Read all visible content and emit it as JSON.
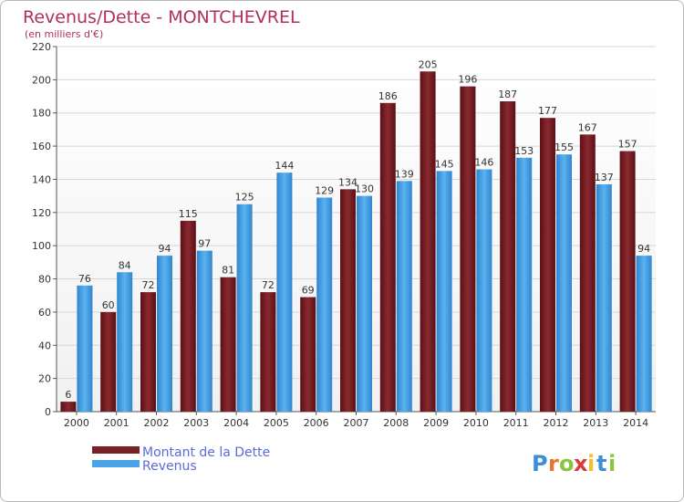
{
  "chart_data": {
    "type": "bar",
    "title": "Revenus/Dette - MONTCHEVREL",
    "subtitle": "(en milliers d'€)",
    "categories": [
      "2000",
      "2001",
      "2002",
      "2003",
      "2004",
      "2005",
      "2006",
      "2007",
      "2008",
      "2009",
      "2010",
      "2011",
      "2012",
      "2013",
      "2014"
    ],
    "series": [
      {
        "name": "Montant de la Dette",
        "color": "#7a1f25",
        "values": [
          6,
          60,
          72,
          115,
          81,
          72,
          69,
          134,
          186,
          205,
          196,
          187,
          177,
          167,
          157
        ]
      },
      {
        "name": "Revenus",
        "color": "#4aa3e6",
        "values": [
          76,
          84,
          94,
          97,
          125,
          144,
          129,
          130,
          139,
          145,
          146,
          153,
          155,
          137,
          94
        ]
      }
    ],
    "ylim": [
      0,
      220
    ],
    "yticks": [
      0,
      20,
      40,
      60,
      80,
      100,
      120,
      140,
      160,
      180,
      200,
      220
    ],
    "grid": true,
    "legend": "bottom-left"
  },
  "logo": {
    "letters": [
      {
        "char": "P",
        "color": "#3a8fd8"
      },
      {
        "char": "r",
        "color": "#e8762b"
      },
      {
        "char": "o",
        "color": "#8bc53f"
      },
      {
        "char": "x",
        "color": "#d93a3a"
      },
      {
        "char": "i",
        "color": "#f2c12e"
      },
      {
        "char": "t",
        "color": "#3a8fd8"
      },
      {
        "char": "i",
        "color": "#8bc53f"
      }
    ]
  }
}
